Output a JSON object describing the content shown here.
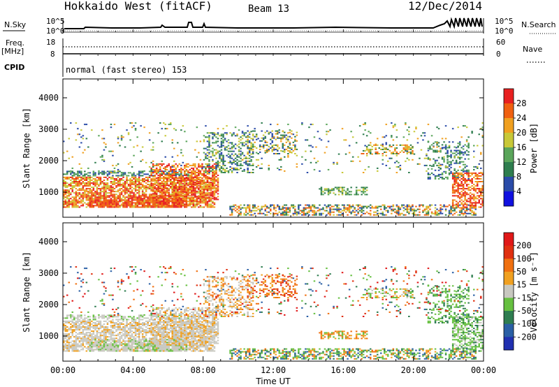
{
  "header": {
    "title": "Hokkaido West (fitACF)",
    "beam": "Beam 13",
    "date": "12/Dec/2014"
  },
  "strips": {
    "nsky_label": "N.Sky",
    "nsky_ticks": [
      "10^5",
      "10^0"
    ],
    "nsearch_label": "N.Search",
    "nsearch_ticks": [
      "10^5",
      "10^0"
    ],
    "freq_label_1": "Freq.",
    "freq_label_2": "[MHz]",
    "freq_ticks": [
      "18",
      "8"
    ],
    "nave_label": "Nave",
    "nave_ticks": [
      "60",
      "0"
    ],
    "cpid_label": "CPID",
    "cpid_text": "normal (fast stereo) 153"
  },
  "colors": {
    "power_scale": [
      "#1010e0",
      "#2a4ba8",
      "#2e7d4e",
      "#5aa55a",
      "#c8c838",
      "#f0a020",
      "#f06010",
      "#e82020"
    ],
    "velocity_scale": [
      "#2030b0",
      "#2a5fa5",
      "#2e7d50",
      "#66c040",
      "#c8c8c0",
      "#f0a020",
      "#f07010",
      "#e03010",
      "#e01818"
    ]
  },
  "chart_data": [
    {
      "type": "heatmap",
      "name": "power-panel",
      "xlabel": "",
      "ylabel": "Slant Range [km]",
      "x_ticks": [
        "00:00",
        "04:00",
        "08:00",
        "12:00",
        "16:00",
        "20:00",
        "00:00"
      ],
      "y_ticks": [
        1000,
        2000,
        3000,
        4000
      ],
      "ylim": [
        200,
        4600
      ],
      "colorbar": {
        "label": "Power [dB]",
        "ticks": [
          4,
          8,
          12,
          16,
          20,
          24,
          28
        ],
        "range": [
          0,
          32
        ]
      }
    },
    {
      "type": "heatmap",
      "name": "velocity-panel",
      "xlabel": "Time UT",
      "ylabel": "Slant Range [km]",
      "x_ticks": [
        "00:00",
        "04:00",
        "08:00",
        "12:00",
        "16:00",
        "20:00",
        "00:00"
      ],
      "y_ticks": [
        1000,
        2000,
        3000,
        4000
      ],
      "ylim": [
        200,
        4600
      ],
      "colorbar": {
        "label": "Velocity [m s⁻¹]",
        "ticks": [
          200,
          100,
          50,
          15,
          -15,
          -50,
          -100,
          -200
        ]
      }
    }
  ]
}
